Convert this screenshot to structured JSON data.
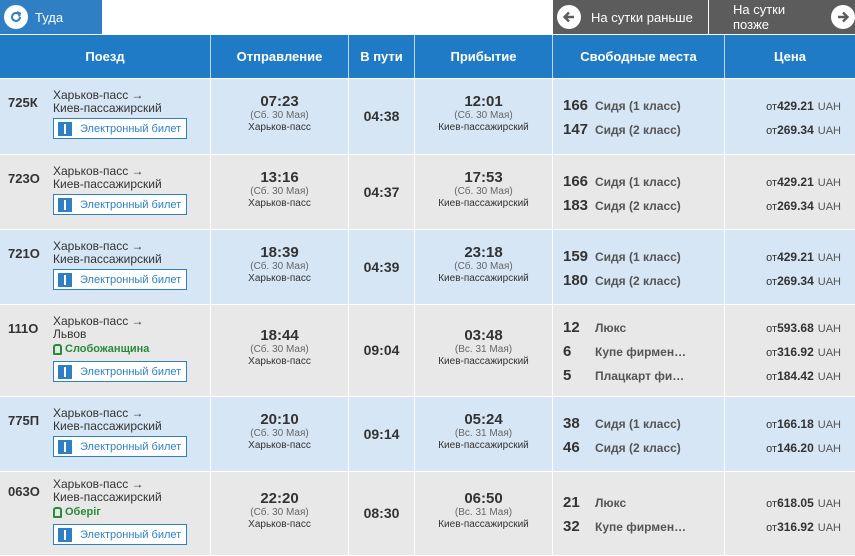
{
  "direction": {
    "label": "Туда",
    "icon": "return-arrow-icon"
  },
  "nav": {
    "prev_label": "На сутки раньше",
    "next_label": "На сутки позже"
  },
  "columns": [
    "Поезд",
    "Отправление",
    "В пути",
    "Прибытие",
    "Свободные места",
    "Цена"
  ],
  "eticket_label": "Электронный билет",
  "price_prefix": "от",
  "currency": "UAH",
  "colors": {
    "header": "#1f7bc5",
    "row_blue": "#d6e6f5",
    "row_gray": "#e8e8e8",
    "named_train": "#2a8a3a"
  },
  "trains": [
    {
      "number": "725К",
      "route_from": "Харьков-пасс →",
      "route_to": "Киев-пассажирский",
      "name": "",
      "dep_time": "07:23",
      "dep_date": "(Сб. 30 Мая)",
      "dep_station": "Харьков-пасс",
      "duration": "04:38",
      "arr_time": "12:01",
      "arr_date": "(Сб. 30 Мая)",
      "arr_station": "Киев-пассажирский",
      "seats": [
        {
          "count": "166",
          "type": "Сидя (1 класс)",
          "price": "429.21"
        },
        {
          "count": "147",
          "type": "Сидя (2 класс)",
          "price": "269.34"
        }
      ]
    },
    {
      "number": "723О",
      "route_from": "Харьков-пасс →",
      "route_to": "Киев-пассажирский",
      "name": "",
      "dep_time": "13:16",
      "dep_date": "(Сб. 30 Мая)",
      "dep_station": "Харьков-пасс",
      "duration": "04:37",
      "arr_time": "17:53",
      "arr_date": "(Сб. 30 Мая)",
      "arr_station": "Киев-пассажирский",
      "seats": [
        {
          "count": "166",
          "type": "Сидя (1 класс)",
          "price": "429.21"
        },
        {
          "count": "183",
          "type": "Сидя (2 класс)",
          "price": "269.34"
        }
      ]
    },
    {
      "number": "721О",
      "route_from": "Харьков-пасс →",
      "route_to": "Киев-пассажирский",
      "name": "",
      "dep_time": "18:39",
      "dep_date": "(Сб. 30 Мая)",
      "dep_station": "Харьков-пасс",
      "duration": "04:39",
      "arr_time": "23:18",
      "arr_date": "(Сб. 30 Мая)",
      "arr_station": "Киев-пассажирский",
      "seats": [
        {
          "count": "159",
          "type": "Сидя (1 класс)",
          "price": "429.21"
        },
        {
          "count": "180",
          "type": "Сидя (2 класс)",
          "price": "269.34"
        }
      ]
    },
    {
      "number": "111О",
      "route_from": "Харьков-пасс →",
      "route_to": "Львов",
      "name": "Слобожанщина",
      "dep_time": "18:44",
      "dep_date": "(Сб. 30 Мая)",
      "dep_station": "Харьков-пасс",
      "duration": "09:04",
      "arr_time": "03:48",
      "arr_date": "(Вс. 31 Мая)",
      "arr_station": "Киев-пассажирский",
      "seats": [
        {
          "count": "12",
          "type": "Люкс",
          "price": "593.68"
        },
        {
          "count": "6",
          "type": "Купе фирмен…",
          "price": "316.92"
        },
        {
          "count": "5",
          "type": "Плацкарт фи…",
          "price": "184.42"
        }
      ]
    },
    {
      "number": "775П",
      "route_from": "Харьков-пасс →",
      "route_to": "Киев-пассажирский",
      "name": "",
      "dep_time": "20:10",
      "dep_date": "(Сб. 30 Мая)",
      "dep_station": "Харьков-пасс",
      "duration": "09:14",
      "arr_time": "05:24",
      "arr_date": "(Вс. 31 Мая)",
      "arr_station": "Киев-пассажирский",
      "seats": [
        {
          "count": "38",
          "type": "Сидя (1 класс)",
          "price": "166.18"
        },
        {
          "count": "46",
          "type": "Сидя (2 класс)",
          "price": "146.20"
        }
      ]
    },
    {
      "number": "063О",
      "route_from": "Харьков-пасс →",
      "route_to": "Киев-пассажирский",
      "name": "Оберіг",
      "dep_time": "22:20",
      "dep_date": "(Сб. 30 Мая)",
      "dep_station": "Харьков-пасс",
      "duration": "08:30",
      "arr_time": "06:50",
      "arr_date": "(Вс. 31 Мая)",
      "arr_station": "Киев-пассажирский",
      "seats": [
        {
          "count": "21",
          "type": "Люкс",
          "price": "618.05"
        },
        {
          "count": "32",
          "type": "Купе фирмен…",
          "price": "316.92"
        }
      ]
    }
  ]
}
